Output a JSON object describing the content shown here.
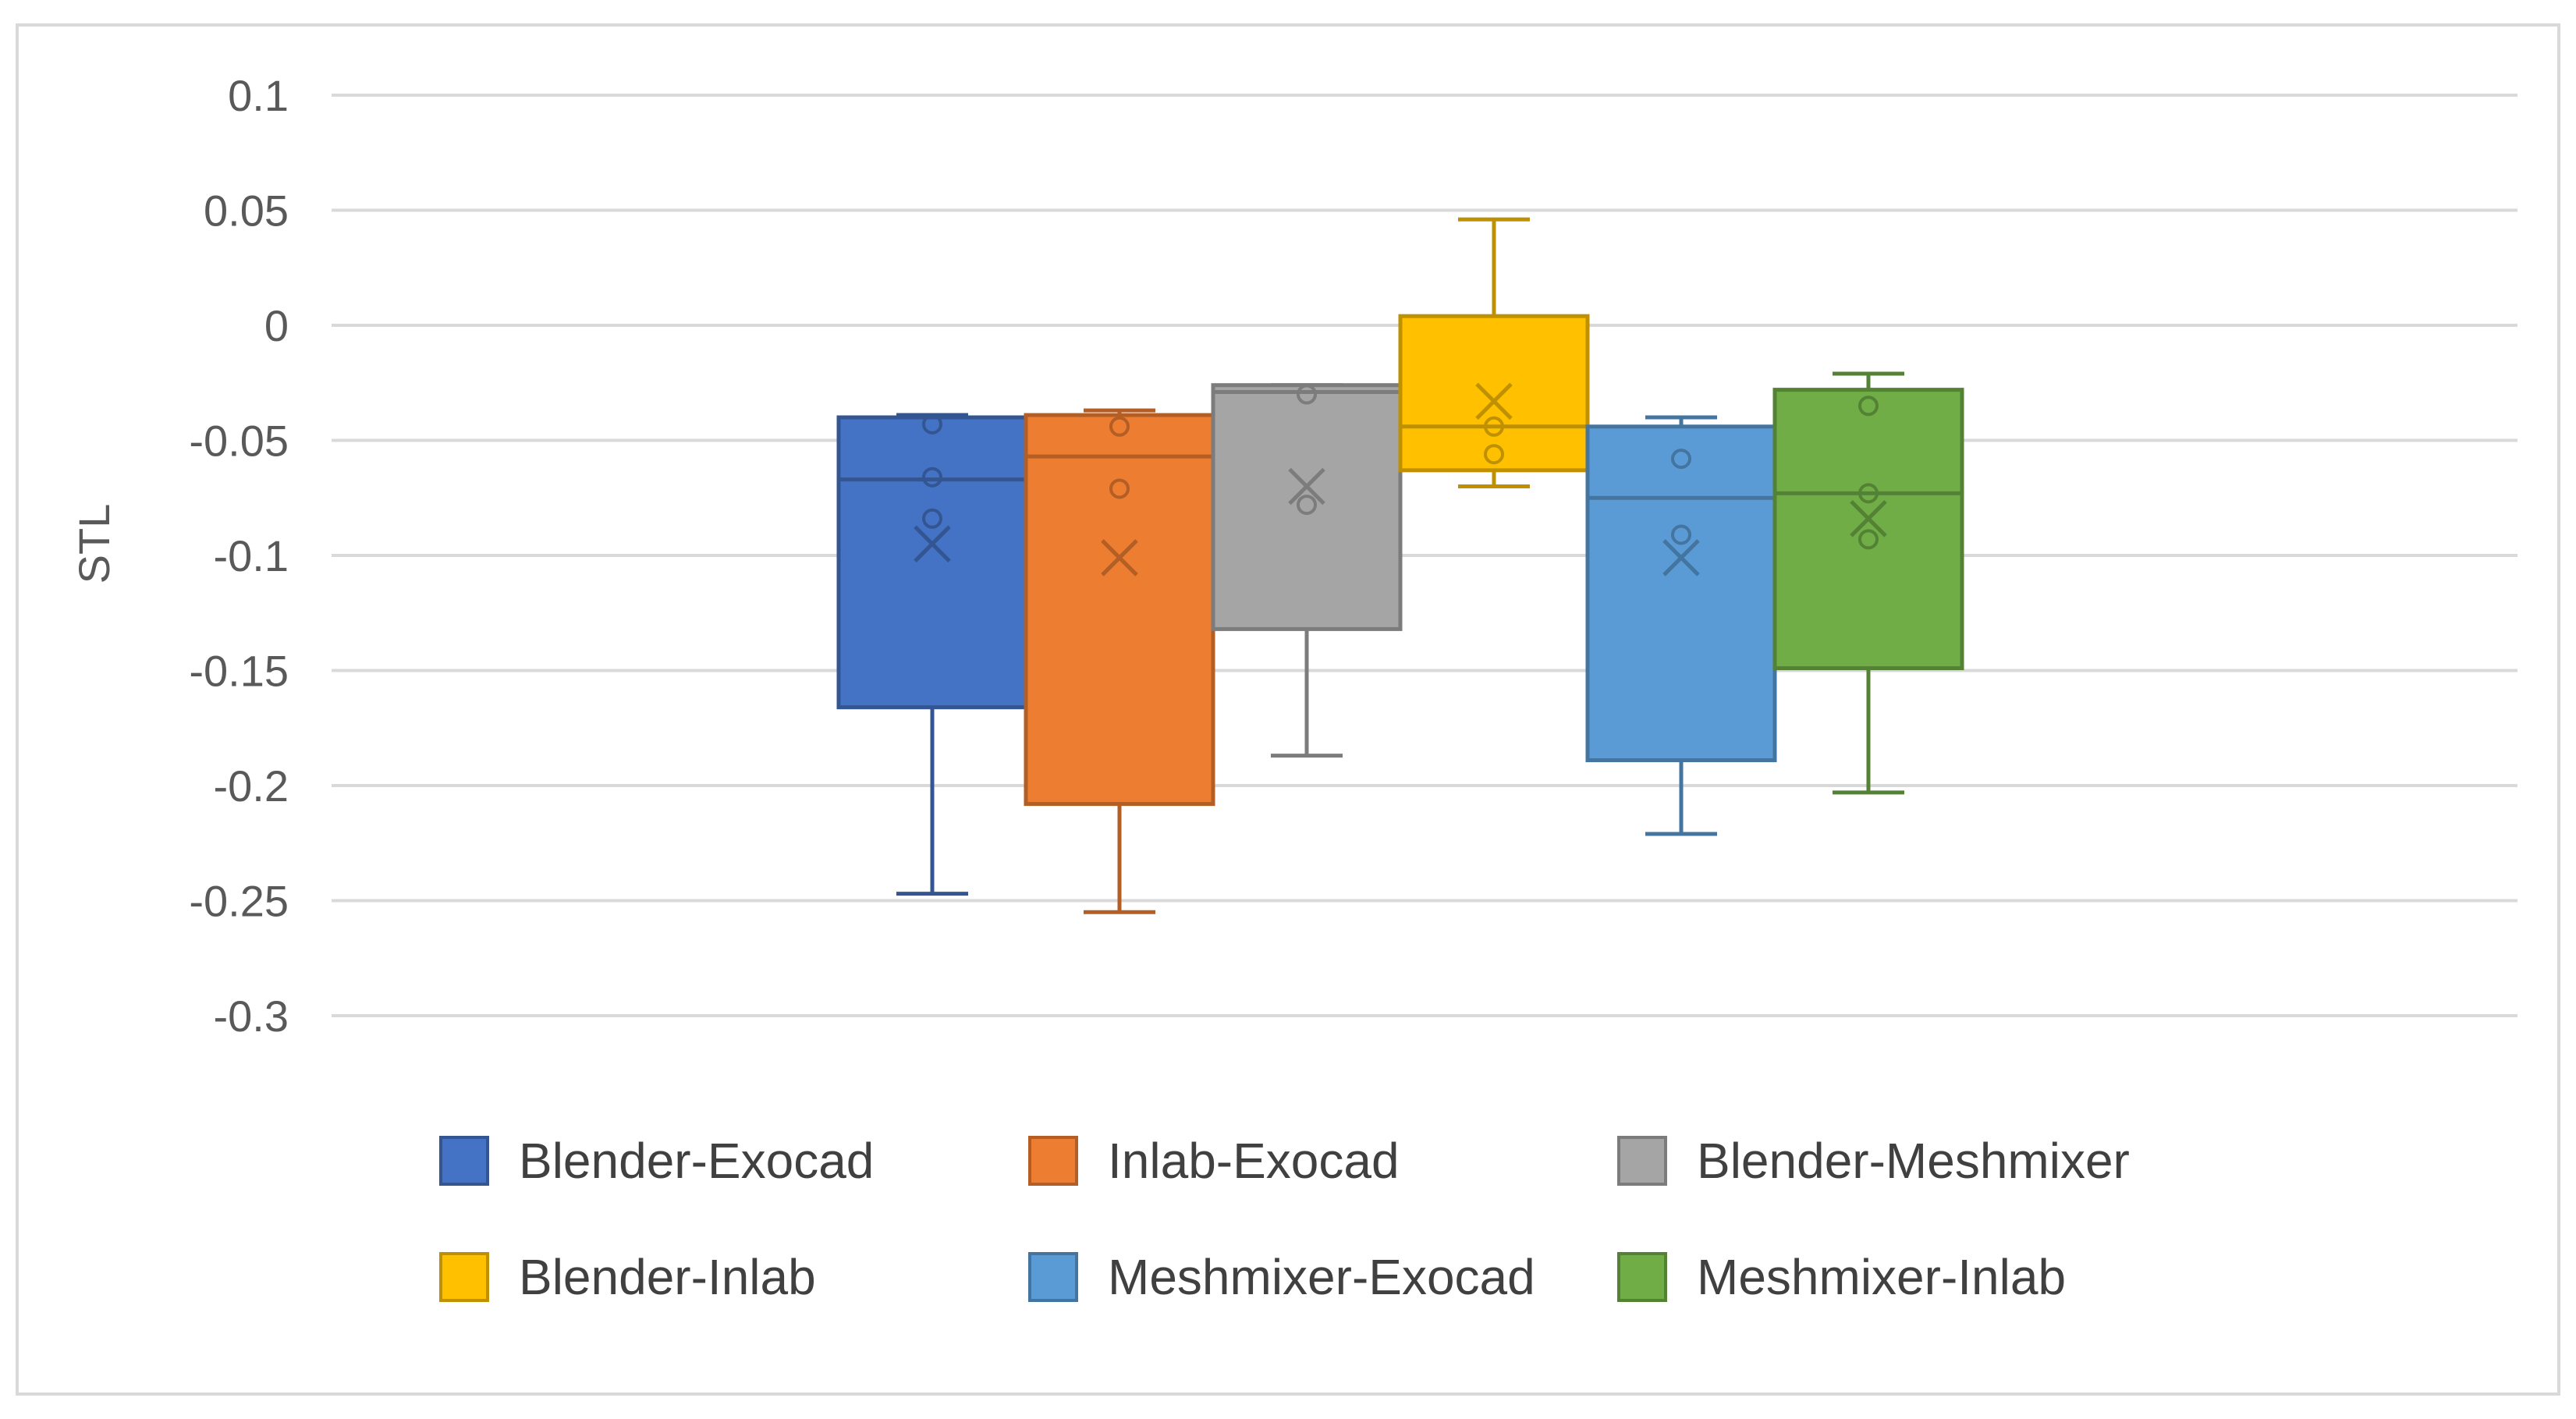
{
  "chart_data": {
    "type": "box",
    "title": "",
    "xlabel": "",
    "ylabel": "STL",
    "ylim": [
      -0.3,
      0.1
    ],
    "yticks": [
      0.1,
      0.05,
      0,
      -0.05,
      -0.1,
      -0.15,
      -0.2,
      -0.25,
      -0.3
    ],
    "ytick_labels": [
      "0.1",
      "0.05",
      "0",
      "-0.05",
      "-0.1",
      "-0.15",
      "-0.2",
      "-0.25",
      "-0.3"
    ],
    "grid": true,
    "legend_position": "bottom",
    "series": [
      {
        "name": "Blender-Exocad",
        "color": "#4472c4",
        "min": -0.247,
        "q1": -0.166,
        "median": -0.067,
        "q3": -0.04,
        "max": -0.039,
        "mean": -0.095,
        "points": [
          -0.043,
          -0.066,
          -0.084
        ]
      },
      {
        "name": "Inlab-Exocad",
        "color": "#ed7d31",
        "min": -0.255,
        "q1": -0.208,
        "median": -0.057,
        "q3": -0.039,
        "max": -0.037,
        "mean": -0.101,
        "points": [
          -0.044,
          -0.071
        ]
      },
      {
        "name": "Blender-Meshmixer",
        "color": "#a5a5a5",
        "min": -0.187,
        "q1": -0.132,
        "median": -0.029,
        "q3": -0.026,
        "max": -0.026,
        "mean": -0.07,
        "points": [
          -0.03,
          -0.078
        ]
      },
      {
        "name": "Blender-Inlab",
        "color": "#ffc000",
        "min": -0.07,
        "q1": -0.063,
        "median": -0.044,
        "q3": 0.004,
        "max": 0.046,
        "mean": -0.033,
        "points": [
          -0.044,
          -0.056
        ]
      },
      {
        "name": "Meshmixer-Exocad",
        "color": "#5b9bd5",
        "min": -0.221,
        "q1": -0.189,
        "median": -0.075,
        "q3": -0.044,
        "max": -0.04,
        "mean": -0.101,
        "points": [
          -0.058,
          -0.091
        ]
      },
      {
        "name": "Meshmixer-Inlab",
        "color": "#70ad47",
        "min": -0.203,
        "q1": -0.149,
        "median": -0.073,
        "q3": -0.028,
        "max": -0.021,
        "mean": -0.084,
        "points": [
          -0.035,
          -0.073,
          -0.093
        ]
      }
    ]
  }
}
